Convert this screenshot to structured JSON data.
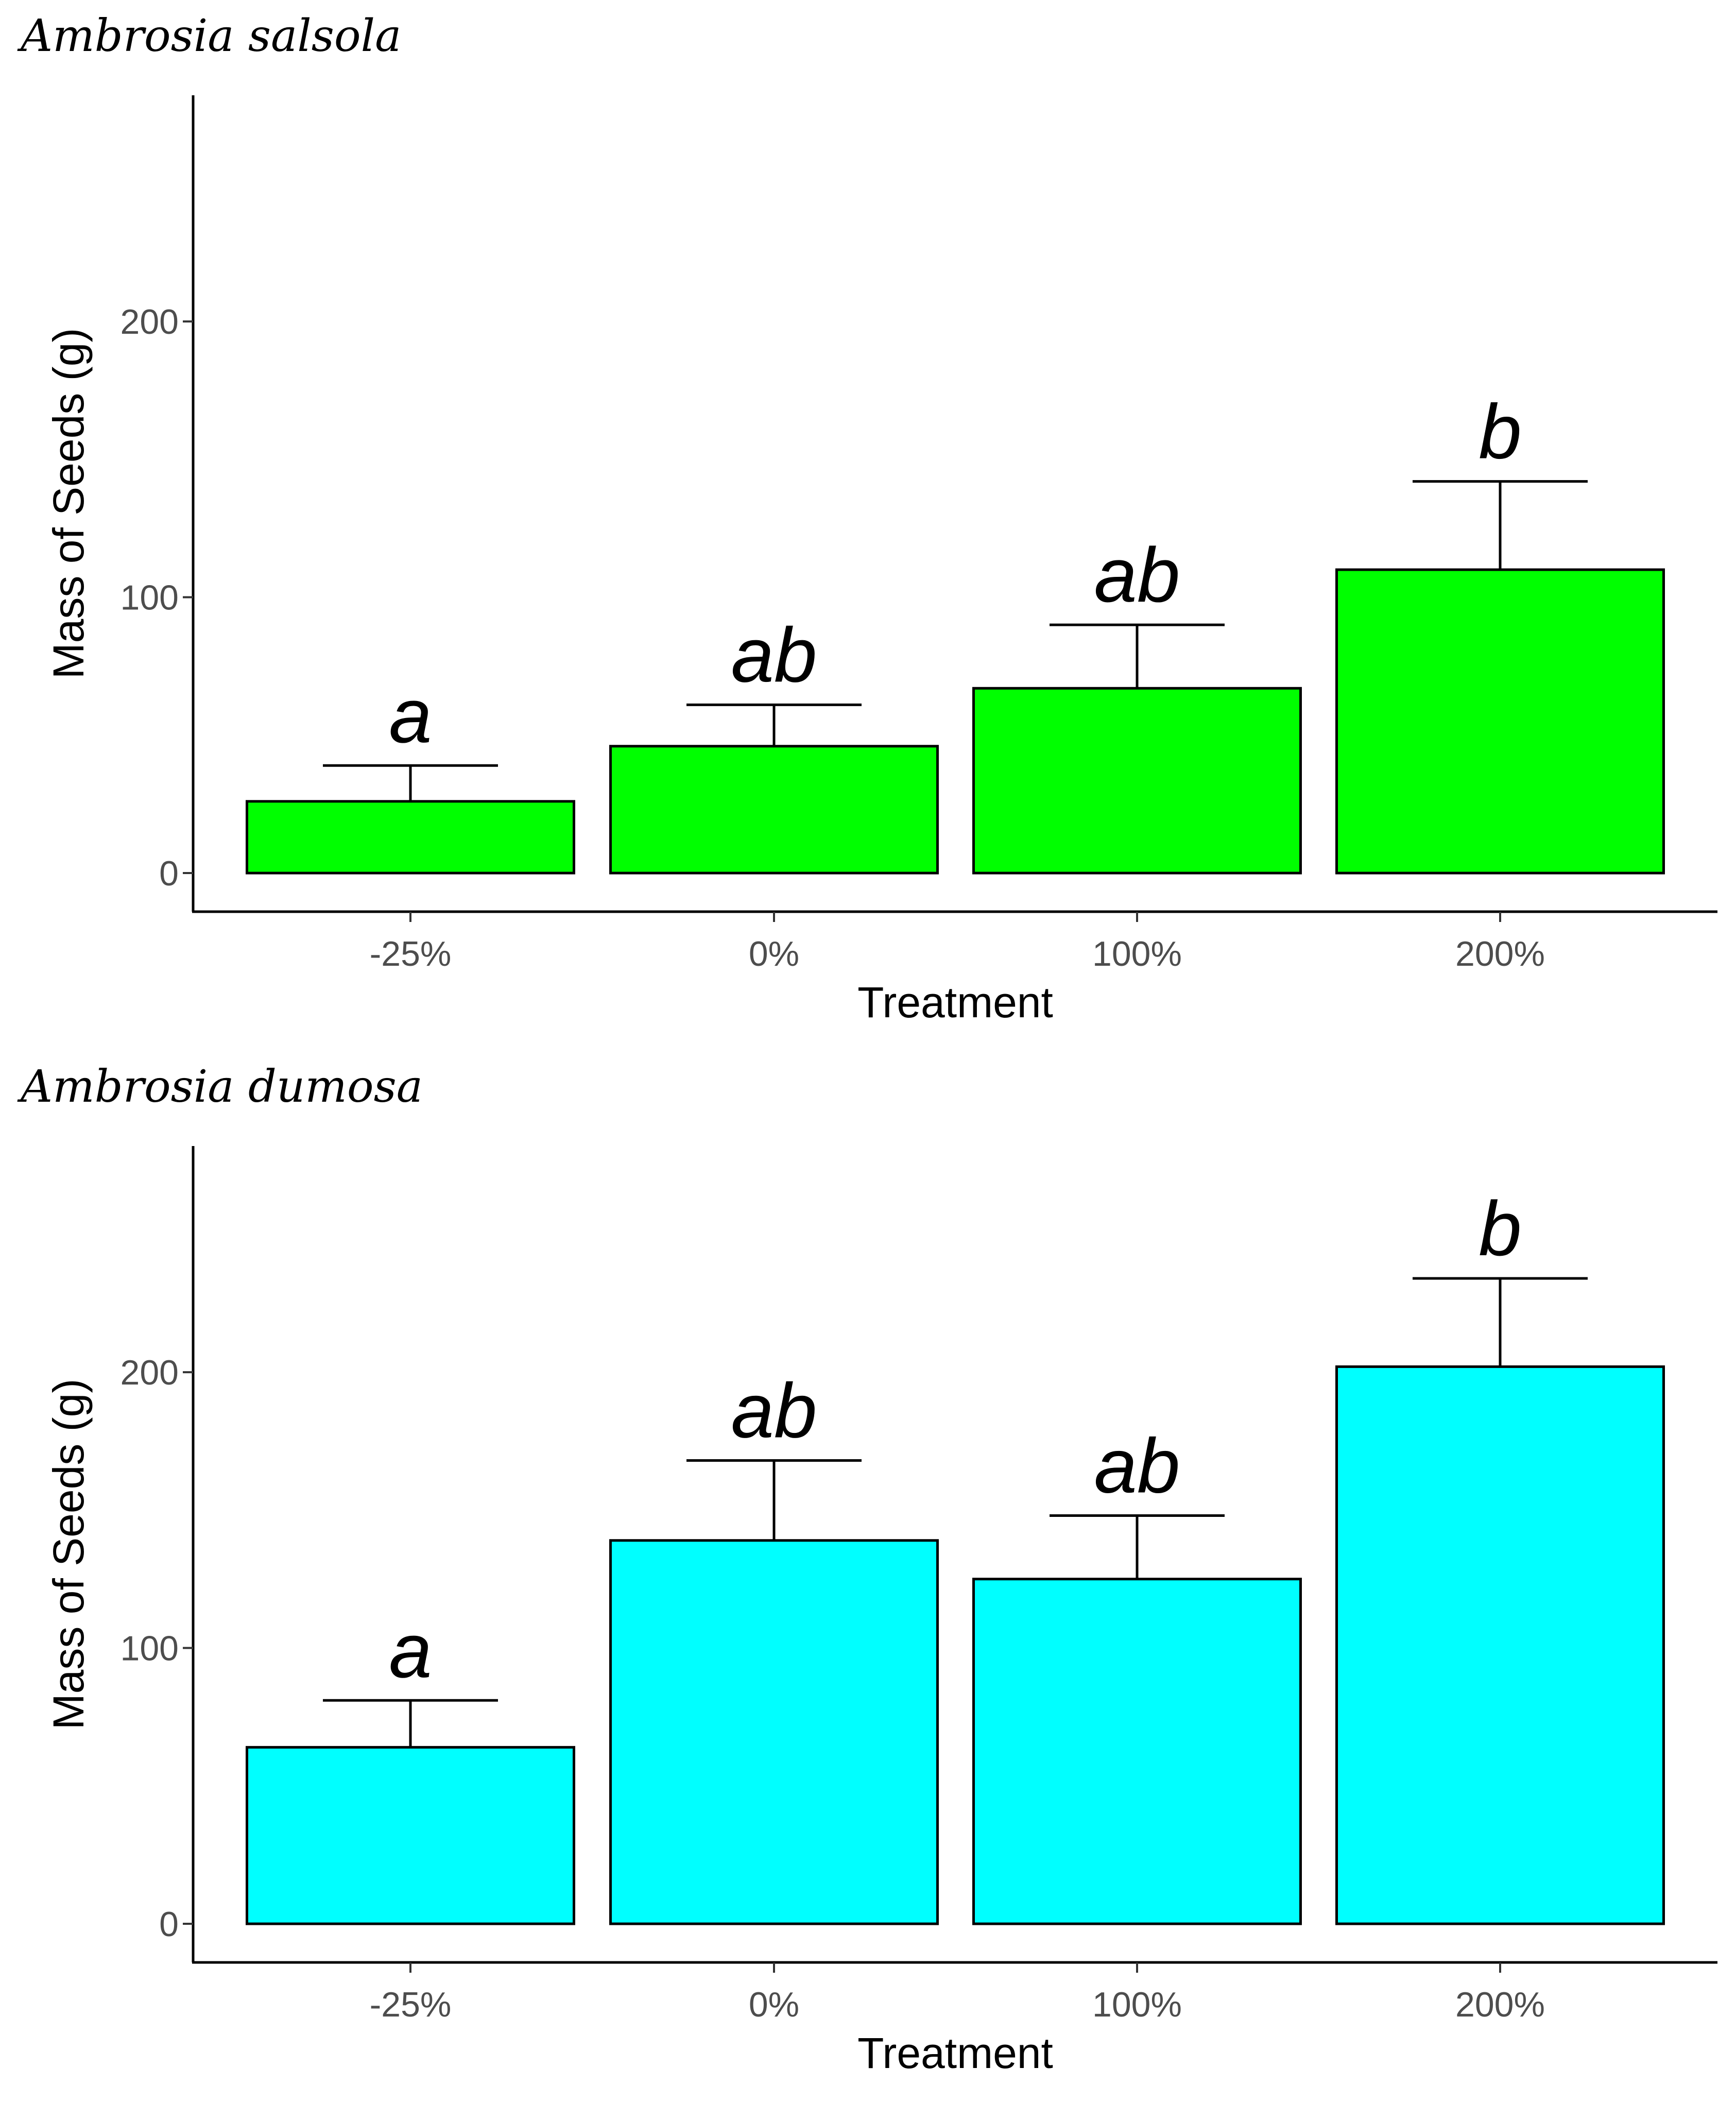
{
  "chart_data": [
    {
      "type": "bar",
      "title": "Ambrosia salsola",
      "xlabel": "Treatment",
      "ylabel": "Mass of Seeds (g)",
      "categories": [
        "-25%",
        "0%",
        "100%",
        "200%"
      ],
      "values": [
        26,
        46,
        67,
        110
      ],
      "error_upper": [
        39,
        61,
        90,
        142
      ],
      "significance": [
        "a",
        "ab",
        "ab",
        "b"
      ],
      "yticks": [
        0,
        100,
        200
      ],
      "ylim": [
        -14,
        282
      ],
      "fill_color": "#00ff00",
      "grid": false
    },
    {
      "type": "bar",
      "title": "Ambrosia dumosa",
      "xlabel": "Treatment",
      "ylabel": "Mass of Seeds (g)",
      "categories": [
        "-25%",
        "0%",
        "100%",
        "200%"
      ],
      "values": [
        64,
        139,
        125,
        202
      ],
      "error_upper": [
        81,
        168,
        148,
        234
      ],
      "significance": [
        "a",
        "ab",
        "ab",
        "b"
      ],
      "yticks": [
        0,
        100,
        200
      ],
      "ylim": [
        -14,
        282
      ],
      "fill_color": "#00ffff",
      "grid": false
    }
  ]
}
